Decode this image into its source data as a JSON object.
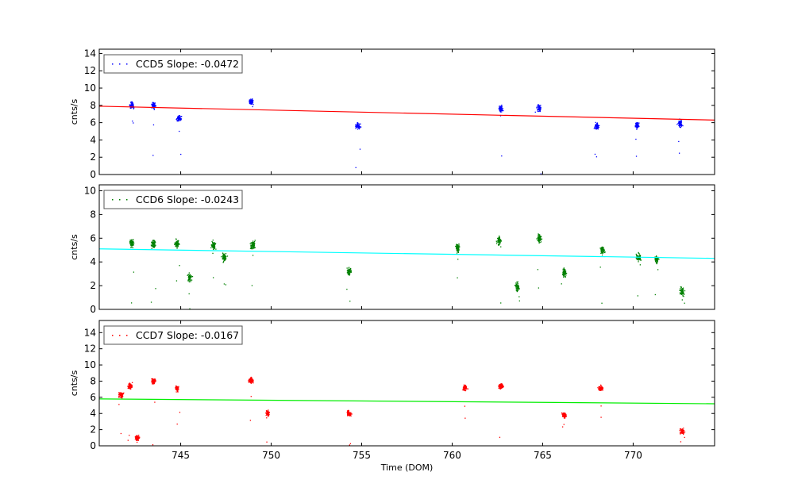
{
  "chart_data": [
    {
      "type": "scatter",
      "legend": "CCD5 Slope: -0.0472",
      "legend_placement": "top-left",
      "ylabel": "cnts/s",
      "xlabel": "",
      "xlim": [
        740.5,
        774.5
      ],
      "ylim": [
        0,
        14.5
      ],
      "yticks": [
        "0",
        "2",
        "4",
        "6",
        "8",
        "10",
        "12",
        "14"
      ],
      "xticks": [],
      "point_color": "#0000ff",
      "fit_color": "#ff0000",
      "fit_line": [
        [
          740.5,
          7.9
        ],
        [
          774.5,
          6.3
        ]
      ],
      "clusters": [
        {
          "x": 742.3,
          "y": 8.0
        },
        {
          "x": 743.5,
          "y": 8.0
        },
        {
          "x": 744.9,
          "y": 6.5
        },
        {
          "x": 748.9,
          "y": 8.4
        },
        {
          "x": 754.8,
          "y": 5.6
        },
        {
          "x": 762.7,
          "y": 7.6
        },
        {
          "x": 764.8,
          "y": 7.7
        },
        {
          "x": 768.0,
          "y": 5.6
        },
        {
          "x": 770.2,
          "y": 5.7
        },
        {
          "x": 772.6,
          "y": 5.9
        }
      ]
    },
    {
      "type": "scatter",
      "legend": "CCD6 Slope: -0.0243",
      "legend_placement": "top-left",
      "ylabel": "cnts/s",
      "xlabel": "",
      "xlim": [
        740.5,
        774.5
      ],
      "ylim": [
        0,
        10.5
      ],
      "yticks": [
        "0",
        "2",
        "4",
        "6",
        "8",
        "10"
      ],
      "xticks": [],
      "point_color": "#008000",
      "fit_color": "#00ffff",
      "fit_line": [
        [
          740.5,
          5.1
        ],
        [
          774.5,
          4.3
        ]
      ],
      "clusters": [
        {
          "x": 742.3,
          "y": 5.6
        },
        {
          "x": 743.5,
          "y": 5.5
        },
        {
          "x": 744.8,
          "y": 5.5
        },
        {
          "x": 745.5,
          "y": 2.7
        },
        {
          "x": 746.8,
          "y": 5.4
        },
        {
          "x": 747.4,
          "y": 4.4
        },
        {
          "x": 749.0,
          "y": 5.4
        },
        {
          "x": 754.3,
          "y": 3.2
        },
        {
          "x": 760.3,
          "y": 5.2
        },
        {
          "x": 762.6,
          "y": 5.8
        },
        {
          "x": 763.6,
          "y": 1.9
        },
        {
          "x": 764.8,
          "y": 6.0
        },
        {
          "x": 766.2,
          "y": 3.1
        },
        {
          "x": 768.3,
          "y": 5.0
        },
        {
          "x": 770.3,
          "y": 4.4
        },
        {
          "x": 771.3,
          "y": 4.2
        },
        {
          "x": 772.7,
          "y": 1.5
        }
      ]
    },
    {
      "type": "scatter",
      "legend": "CCD7 Slope: -0.0167",
      "legend_placement": "top-left",
      "ylabel": "cnts/s",
      "xlabel": "Time (DOM)",
      "xlim": [
        740.5,
        774.5
      ],
      "ylim": [
        0,
        15.5
      ],
      "yticks": [
        "0",
        "2",
        "4",
        "6",
        "8",
        "10",
        "12",
        "14"
      ],
      "xticks": [
        "745",
        "750",
        "755",
        "760",
        "765",
        "770"
      ],
      "point_color": "#ff0000",
      "fit_color": "#00ee00",
      "fit_line": [
        [
          740.5,
          5.8
        ],
        [
          774.5,
          5.2
        ]
      ],
      "clusters": [
        {
          "x": 741.7,
          "y": 6.3
        },
        {
          "x": 742.2,
          "y": 7.4
        },
        {
          "x": 742.6,
          "y": 1.0
        },
        {
          "x": 743.5,
          "y": 8.0
        },
        {
          "x": 744.8,
          "y": 7.1
        },
        {
          "x": 748.9,
          "y": 8.1
        },
        {
          "x": 749.8,
          "y": 4.0
        },
        {
          "x": 754.3,
          "y": 4.0
        },
        {
          "x": 760.7,
          "y": 7.2
        },
        {
          "x": 762.7,
          "y": 7.4
        },
        {
          "x": 766.2,
          "y": 3.8
        },
        {
          "x": 768.2,
          "y": 7.1
        },
        {
          "x": 772.7,
          "y": 1.8
        }
      ]
    }
  ]
}
